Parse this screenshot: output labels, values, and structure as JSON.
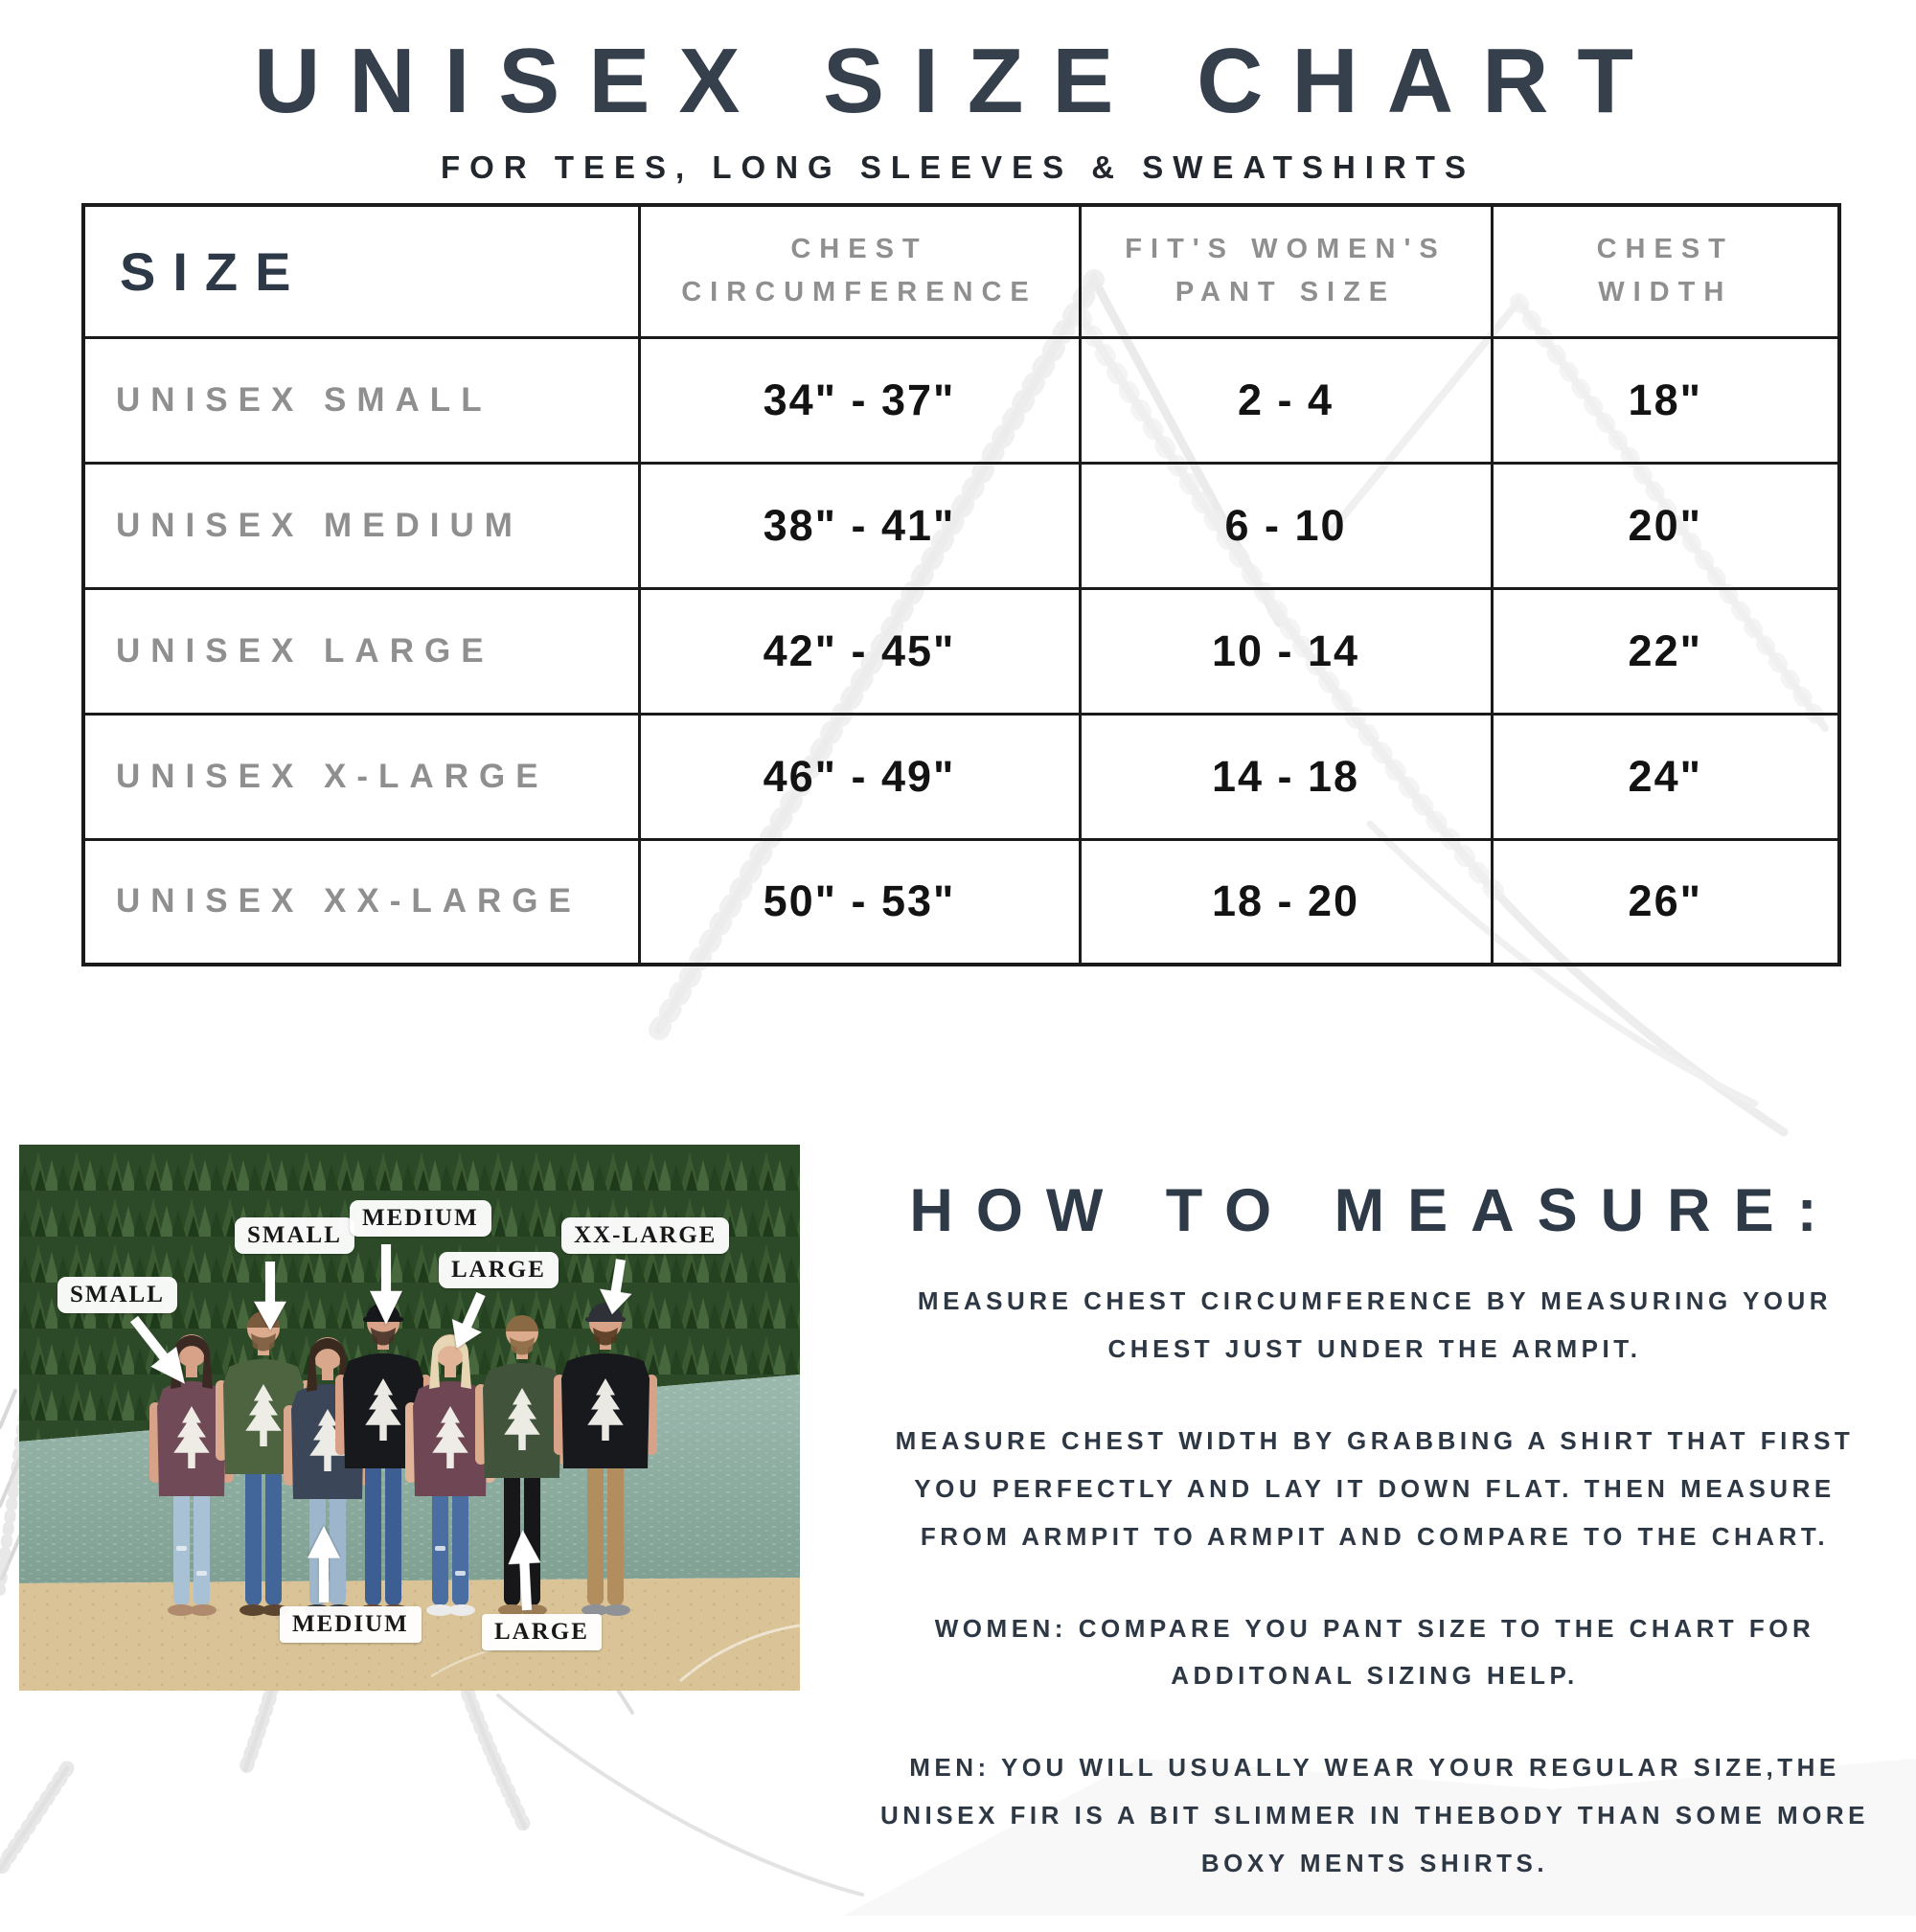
{
  "page": {
    "title": "UNISEX SIZE CHART",
    "subtitle": "FOR TEES, LONG SLEEVES & SWEATSHIRTS"
  },
  "size_table": {
    "columns": [
      "SIZE",
      "CHEST CIRCUMFERENCE",
      "FIT'S WOMEN'S PANT SIZE",
      "CHEST WIDTH"
    ],
    "rows": [
      {
        "size": "UNISEX SMALL",
        "chest_circumference": "34\" - 37\"",
        "womens_pant_size": "2 - 4",
        "chest_width": "18\""
      },
      {
        "size": "UNISEX MEDIUM",
        "chest_circumference": "38\" - 41\"",
        "womens_pant_size": "6 - 10",
        "chest_width": "20\""
      },
      {
        "size": "UNISEX LARGE",
        "chest_circumference": "42\" - 45\"",
        "womens_pant_size": "10 - 14",
        "chest_width": "22\""
      },
      {
        "size": "UNISEX X-LARGE",
        "chest_circumference": "46\" - 49\"",
        "womens_pant_size": "14 - 18",
        "chest_width": "24\""
      },
      {
        "size": "UNISEX XX-LARGE",
        "chest_circumference": "50\" - 53\"",
        "womens_pant_size": "18 - 20",
        "chest_width": "26\""
      }
    ]
  },
  "photo": {
    "labels": {
      "small_left": "SMALL",
      "small_top": "SMALL",
      "medium_top": "MEDIUM",
      "large_top": "LARGE",
      "xx_large_top": "XX-LARGE",
      "medium_bottom": "MEDIUM",
      "large_bottom": "LARGE"
    }
  },
  "how_to_measure": {
    "heading": "HOW TO MEASURE:",
    "paragraphs": [
      "MEASURE CHEST CIRCUMFERENCE BY MEASURING YOUR CHEST JUST UNDER THE ARMPIT.",
      "MEASURE CHEST WIDTH BY GRABBING A SHIRT THAT FIRST YOU PERFECTLY AND LAY IT DOWN FLAT. THEN MEASURE FROM ARMPIT TO ARMPIT AND COMPARE TO THE CHART.",
      "WOMEN: COMPARE YOU PANT SIZE TO THE CHART FOR ADDITONAL SIZING HELP.",
      "MEN: YOU WILL USUALLY WEAR YOUR REGULAR SIZE,THE UNISEX FIR IS A BIT SLIMMER IN THEBODY THAN SOME MORE BOXY MENTS SHIRTS."
    ]
  },
  "colors": {
    "heading_navy": "#36404d",
    "body_navy": "#2d3844",
    "muted_gray": "#8f8f8f",
    "value_black": "#131313",
    "table_border": "#1b1b1b",
    "watermark_gray": "#ececec"
  }
}
